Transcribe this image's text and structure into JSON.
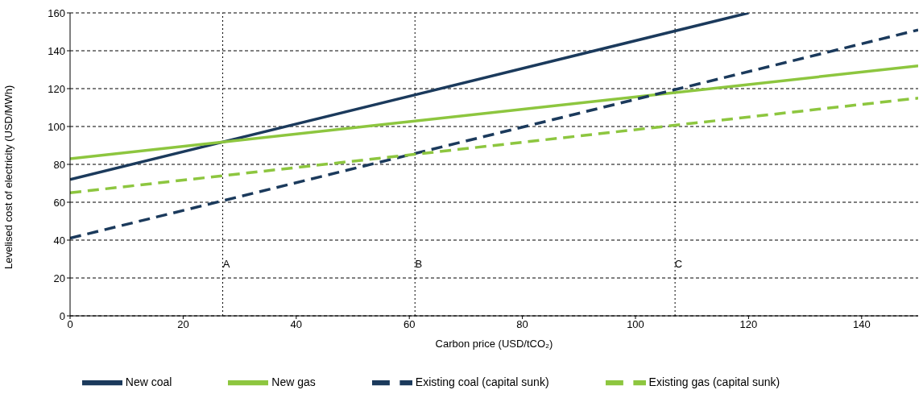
{
  "chart_data": {
    "type": "line",
    "xlabel": "Carbon price (USD/tCO₂)",
    "ylabel": "Levelised cost of electricity (USD/MWh)",
    "series": [
      {
        "name": "New coal",
        "color": "#1b3a5c",
        "x": [
          0,
          120
        ],
        "values": [
          72,
          160
        ],
        "line_style": "solid"
      },
      {
        "name": "New gas",
        "color": "#8dc63f",
        "x": [
          0,
          150
        ],
        "values": [
          83,
          132
        ],
        "line_style": "solid"
      },
      {
        "name": "Existing coal (capital sunk)",
        "color": "#1b3a5c",
        "x": [
          0,
          150
        ],
        "values": [
          41,
          151
        ],
        "line_style": "dashed"
      },
      {
        "name": "Existing gas (capital sunk)",
        "color": "#8dc63f",
        "x": [
          0,
          150
        ],
        "values": [
          65,
          115
        ],
        "line_style": "dashed"
      }
    ],
    "xlim": [
      0,
      150
    ],
    "xticks": [
      0,
      20,
      40,
      60,
      80,
      100,
      120,
      140
    ],
    "ylim": [
      0,
      160
    ],
    "yticks": [
      0,
      20,
      40,
      60,
      80,
      100,
      120,
      140,
      160
    ],
    "grid": "y",
    "legend": "bottom",
    "marker": "none",
    "ref_lines": [
      {
        "axis": "x",
        "value": 27,
        "label": "A",
        "line_style": "dotted",
        "color": "#000000"
      },
      {
        "axis": "x",
        "value": 61,
        "label": "B",
        "line_style": "dotted",
        "color": "#000000"
      },
      {
        "axis": "x",
        "value": 107,
        "label": "C",
        "line_style": "dotted",
        "color": "#000000"
      }
    ]
  }
}
